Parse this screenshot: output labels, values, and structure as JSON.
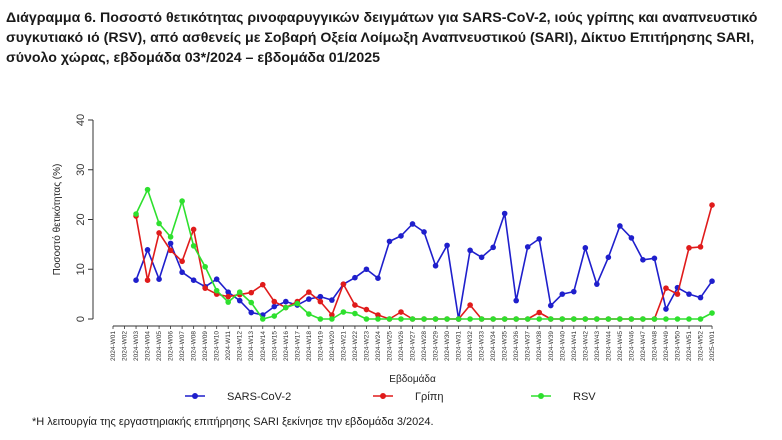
{
  "chart_data": {
    "type": "line",
    "title": "Διάγραμμα 6. Ποσοστό θετικότητας ρινοφαρυγγικών δειγμάτων για SARS-CoV-2, ιούς γρίπης και αναπνευστικό συγκυτιακό ιό (RSV), από ασθενείς με Σοβαρή Οξεία Λοίμωξη Αναπνευστικού (SARI), Δίκτυο Επιτήρησης SARI, σύνολο χώρας, εβδομάδα 03*/2024 – εβδομάδα 01/2025",
    "xlabel": "Εβδομάδα",
    "ylabel": "Ποσοστό θετικότητας (%)",
    "ylim": [
      0,
      40
    ],
    "yticks": [
      0,
      10,
      20,
      30,
      40
    ],
    "grid": false,
    "legend_position": "bottom",
    "categories": [
      "2024-W01",
      "2024-W02",
      "2024-W03",
      "2024-W04",
      "2024-W05",
      "2024-W06",
      "2024-W07",
      "2024-W08",
      "2024-W09",
      "2024-W10",
      "2024-W11",
      "2024-W12",
      "2024-W13",
      "2024-W14",
      "2024-W15",
      "2024-W16",
      "2024-W17",
      "2024-W18",
      "2024-W19",
      "2024-W20",
      "2024-W21",
      "2024-W22",
      "2024-W23",
      "2024-W24",
      "2024-W25",
      "2024-W26",
      "2024-W27",
      "2024-W28",
      "2024-W29",
      "2024-W30",
      "2024-W31",
      "2024-W32",
      "2024-W33",
      "2024-W34",
      "2024-W35",
      "2024-W36",
      "2024-W37",
      "2024-W38",
      "2024-W39",
      "2024-W40",
      "2024-W41",
      "2024-W42",
      "2024-W43",
      "2024-W44",
      "2024-W45",
      "2024-W46",
      "2024-W47",
      "2024-W48",
      "2024-W49",
      "2024-W50",
      "2024-W51",
      "2024-W52",
      "2025-W01"
    ],
    "series": [
      {
        "name": "SARS-CoV-2",
        "color": "#1f1fcc",
        "values": [
          null,
          null,
          7.8,
          13.9,
          8.0,
          15.2,
          9.4,
          7.8,
          6.5,
          8.0,
          5.4,
          3.7,
          1.3,
          0.8,
          2.5,
          3.5,
          2.8,
          4.0,
          4.5,
          3.8,
          7.0,
          8.3,
          10.0,
          8.2,
          15.6,
          16.7,
          19.1,
          17.5,
          10.7,
          14.8,
          0.0,
          13.8,
          12.4,
          14.4,
          21.2,
          3.7,
          14.5,
          16.1,
          2.7,
          5.0,
          5.5,
          14.3,
          7.0,
          12.4,
          18.7,
          16.3,
          11.9,
          12.2,
          2.0,
          6.3,
          5.0,
          4.3,
          7.6
        ]
      },
      {
        "name": "Γρίπη",
        "color": "#e01b1b",
        "values": [
          null,
          null,
          20.7,
          7.8,
          17.3,
          13.8,
          11.6,
          18.0,
          6.2,
          5.0,
          4.5,
          4.9,
          5.3,
          6.9,
          3.5,
          2.3,
          3.5,
          5.4,
          3.5,
          0.8,
          7.0,
          2.8,
          1.9,
          0.8,
          0.0,
          1.4,
          0.0,
          0.0,
          0.0,
          0.0,
          0.0,
          2.8,
          0.0,
          0.0,
          0.0,
          0.0,
          0.0,
          1.3,
          0.0,
          0.0,
          0.0,
          0.0,
          0.0,
          0.0,
          0.0,
          0.0,
          0.0,
          0.0,
          6.2,
          5.0,
          14.3,
          14.5,
          22.9
        ]
      },
      {
        "name": "RSV",
        "color": "#2ee02e",
        "values": [
          null,
          null,
          21.1,
          26.0,
          19.2,
          16.5,
          23.7,
          14.7,
          10.5,
          5.7,
          3.4,
          5.4,
          3.3,
          0.0,
          0.6,
          2.3,
          3.1,
          1.0,
          0.0,
          0.0,
          1.4,
          1.1,
          0.0,
          0.0,
          0.0,
          0.0,
          0.0,
          0.0,
          0.0,
          0.0,
          0.0,
          0.0,
          0.0,
          0.0,
          0.0,
          0.0,
          0.0,
          0.0,
          0.0,
          0.0,
          0.0,
          0.0,
          0.0,
          0.0,
          0.0,
          0.0,
          0.0,
          0.0,
          0.0,
          0.0,
          0.0,
          0.0,
          1.2
        ]
      }
    ]
  },
  "footnote": "*Η λειτουργία της εργαστηριακής επιτήρησης SARI ξεκίνησε την εβδομάδα 3/2024."
}
